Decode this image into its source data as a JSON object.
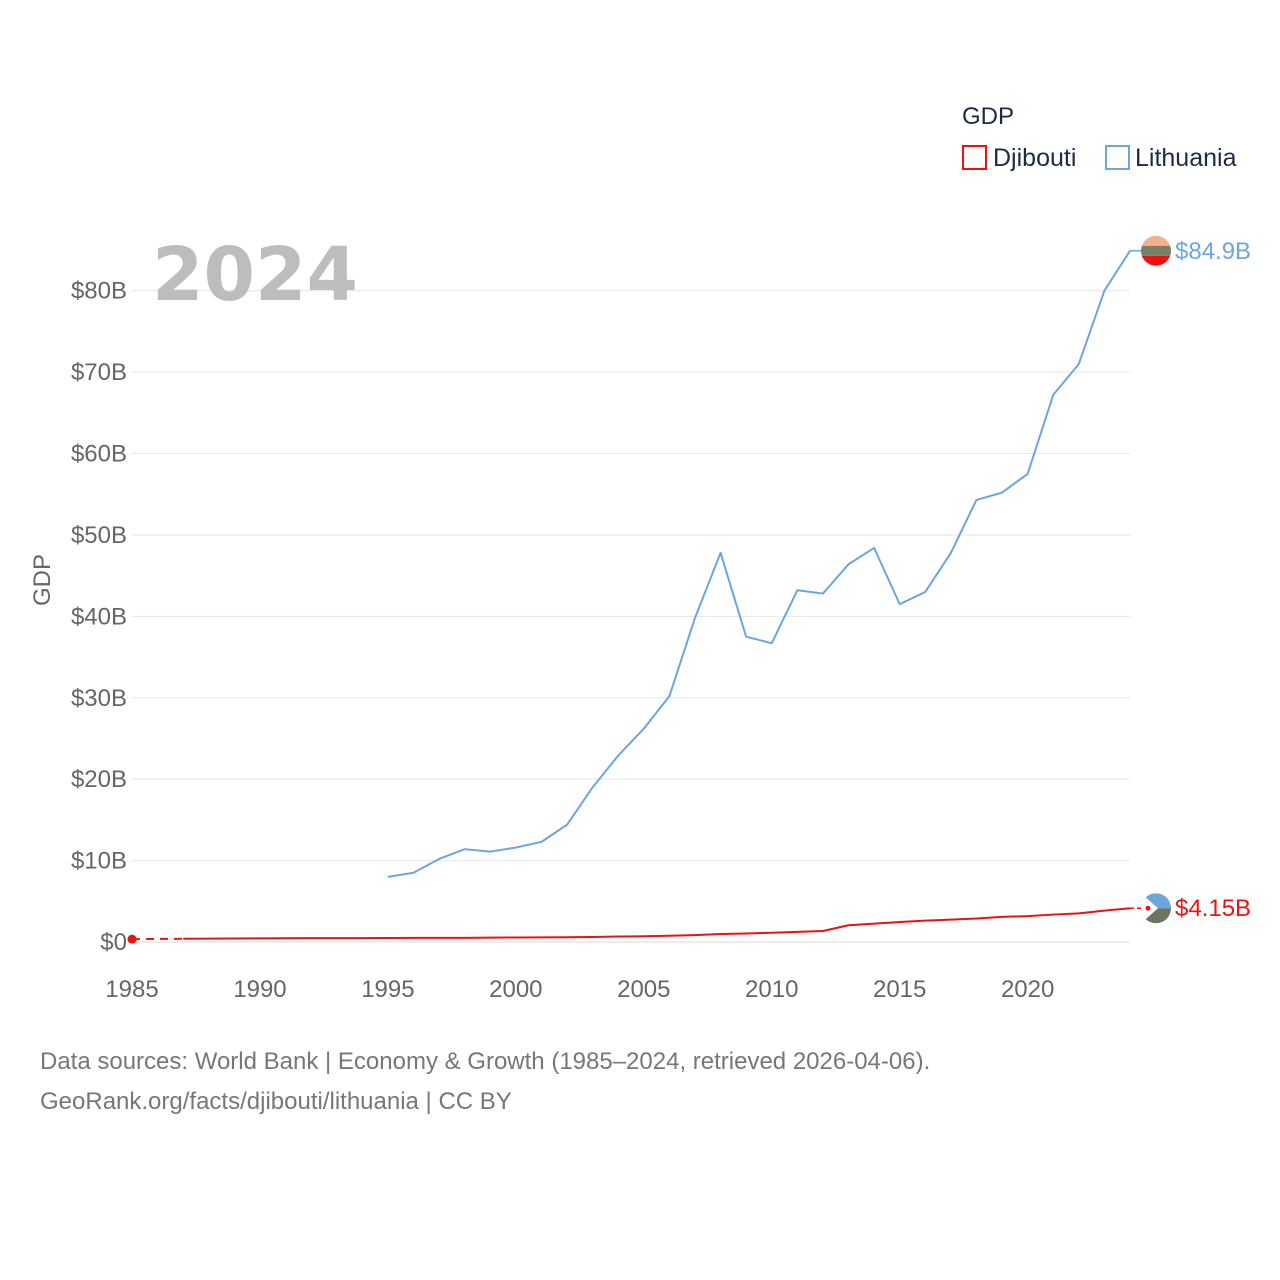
{
  "chart_data": {
    "type": "line",
    "title": "GDP",
    "year_label": "2024",
    "ylabel": "GDP",
    "xlabel": "",
    "xlim": [
      1985,
      2024
    ],
    "ylim": [
      0,
      85
    ],
    "y_unit": "billion USD",
    "x_ticks": [
      1985,
      1990,
      1995,
      2000,
      2005,
      2010,
      2015,
      2020
    ],
    "y_ticks": [
      0,
      10,
      20,
      30,
      40,
      50,
      60,
      70,
      80
    ],
    "y_tick_labels": [
      "$0",
      "$10B",
      "$20B",
      "$30B",
      "$40B",
      "$50B",
      "$60B",
      "$70B",
      "$80B"
    ],
    "legend": {
      "title": "GDP",
      "position": "top-right",
      "entries": [
        "Djibouti",
        "Lithuania"
      ]
    },
    "series": [
      {
        "name": "Djibouti",
        "color": "#ee1111",
        "end_label": "$4.15B",
        "gap_segment": {
          "x": [
            1985,
            1987
          ],
          "y": [
            0.35,
            0.4
          ]
        },
        "x": [
          1987,
          1988,
          1989,
          1990,
          1991,
          1992,
          1993,
          1994,
          1995,
          1996,
          1997,
          1998,
          1999,
          2000,
          2001,
          2002,
          2003,
          2004,
          2005,
          2006,
          2007,
          2008,
          2009,
          2010,
          2011,
          2012,
          2013,
          2014,
          2015,
          2016,
          2017,
          2018,
          2019,
          2020,
          2021,
          2022,
          2023,
          2024
        ],
        "y": [
          0.4,
          0.42,
          0.43,
          0.45,
          0.46,
          0.47,
          0.47,
          0.48,
          0.49,
          0.5,
          0.5,
          0.51,
          0.54,
          0.55,
          0.57,
          0.59,
          0.62,
          0.67,
          0.71,
          0.77,
          0.85,
          0.98,
          1.05,
          1.13,
          1.24,
          1.35,
          2.06,
          2.26,
          2.45,
          2.62,
          2.75,
          2.88,
          3.09,
          3.18,
          3.37,
          3.52,
          3.86,
          4.15
        ]
      },
      {
        "name": "Lithuania",
        "color": "#6ba6e0",
        "end_label": "$84.9B",
        "x": [
          1995,
          1996,
          1997,
          1998,
          1999,
          2000,
          2001,
          2002,
          2003,
          2004,
          2005,
          2006,
          2007,
          2008,
          2009,
          2010,
          2011,
          2012,
          2013,
          2014,
          2015,
          2016,
          2017,
          2018,
          2019,
          2020,
          2021,
          2022,
          2023,
          2024
        ],
        "y": [
          8.0,
          8.5,
          10.2,
          11.4,
          11.1,
          11.6,
          12.3,
          14.4,
          19.0,
          22.9,
          26.2,
          30.2,
          39.8,
          47.8,
          37.5,
          36.7,
          43.2,
          42.8,
          46.4,
          48.4,
          41.5,
          43.0,
          47.8,
          54.3,
          55.2,
          57.5,
          67.2,
          71.0,
          80.0,
          84.9
        ]
      }
    ]
  },
  "footer": {
    "line1": "Data sources: World Bank | Economy & Growth (1985–2024, retrieved 2026-04-06).",
    "line2": "GeoRank.org/facts/djibouti/lithuania | CC BY"
  }
}
